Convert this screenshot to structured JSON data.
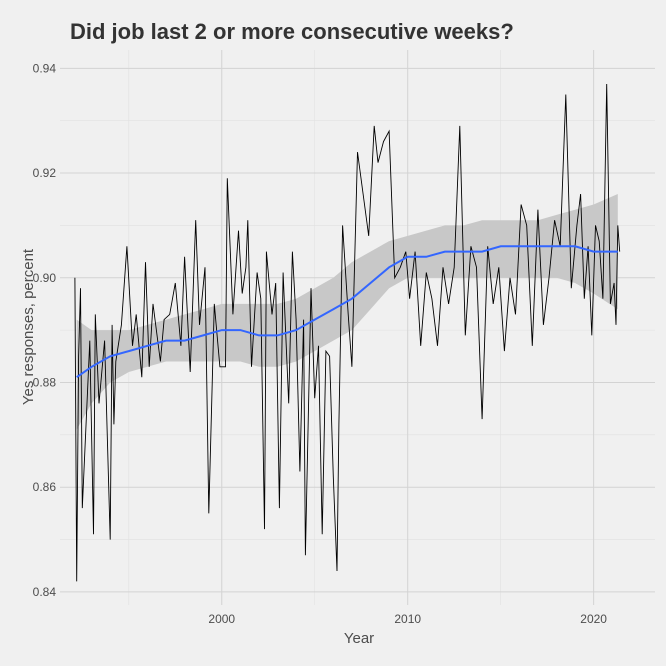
{
  "chart_data": {
    "type": "line",
    "title": "Did job last 2 or more consecutive weeks?",
    "xlabel": "Year",
    "ylabel": "Yes responses, percent",
    "xlim": [
      1991.3,
      2023.3
    ],
    "ylim": [
      0.8375,
      0.9435
    ],
    "x_ticks": [
      2000,
      2010,
      2020
    ],
    "y_ticks": [
      0.84,
      0.86,
      0.88,
      0.9,
      0.92,
      0.94
    ],
    "x_tick_labels": [
      "2000",
      "2010",
      "2020"
    ],
    "y_tick_labels": [
      "0.84",
      "0.86",
      "0.88",
      "0.90",
      "0.92",
      "0.94"
    ],
    "grid": true,
    "legend": "none",
    "series": [
      {
        "style": "raw",
        "color": "#000000",
        "x": [
          1992.1,
          1992.2,
          1992.3,
          1992.4,
          1992.5,
          1992.9,
          1993.1,
          1993.2,
          1993.4,
          1993.7,
          1994.0,
          1994.1,
          1994.2,
          1994.3,
          1994.6,
          1994.9,
          1995.2,
          1995.4,
          1995.7,
          1995.9,
          1996.1,
          1996.3,
          1996.7,
          1996.9,
          1997.2,
          1997.5,
          1997.8,
          1998.0,
          1998.3,
          1998.6,
          1998.8,
          1999.1,
          1999.3,
          1999.6,
          1999.9,
          2000.2,
          2000.3,
          2000.6,
          2000.9,
          2001.1,
          2001.3,
          2001.4,
          2001.6,
          2001.9,
          2002.1,
          2002.3,
          2002.4,
          2002.7,
          2002.9,
          2003.1,
          2003.3,
          2003.6,
          2003.8,
          2004.0,
          2004.2,
          2004.4,
          2004.5,
          2004.8,
          2005.0,
          2005.2,
          2005.4,
          2005.6,
          2005.8,
          2006.0,
          2006.2,
          2006.3,
          2006.5,
          2006.8,
          2007.0,
          2007.3,
          2007.6,
          2007.9,
          2008.2,
          2008.4,
          2008.7,
          2009.0,
          2009.3,
          2009.6,
          2009.9,
          2010.1,
          2010.4,
          2010.7,
          2011.0,
          2011.3,
          2011.6,
          2011.9,
          2012.2,
          2012.5,
          2012.8,
          2013.1,
          2013.4,
          2013.7,
          2014.0,
          2014.3,
          2014.6,
          2014.9,
          2015.2,
          2015.5,
          2015.8,
          2016.1,
          2016.4,
          2016.7,
          2017.0,
          2017.3,
          2017.6,
          2017.9,
          2018.2,
          2018.5,
          2018.8,
          2019.1,
          2019.3,
          2019.5,
          2019.7,
          2019.9,
          2020.1,
          2020.3,
          2020.5,
          2020.7,
          2020.9,
          2021.1,
          2021.2,
          2021.3,
          2021.4
        ],
        "values": [
          0.9,
          0.842,
          0.885,
          0.898,
          0.856,
          0.888,
          0.851,
          0.893,
          0.876,
          0.888,
          0.85,
          0.891,
          0.872,
          0.884,
          0.891,
          0.906,
          0.887,
          0.893,
          0.881,
          0.903,
          0.883,
          0.895,
          0.884,
          0.892,
          0.893,
          0.899,
          0.887,
          0.904,
          0.882,
          0.911,
          0.891,
          0.902,
          0.855,
          0.895,
          0.883,
          0.883,
          0.919,
          0.893,
          0.909,
          0.897,
          0.902,
          0.911,
          0.883,
          0.901,
          0.896,
          0.852,
          0.905,
          0.893,
          0.899,
          0.856,
          0.901,
          0.876,
          0.905,
          0.892,
          0.863,
          0.892,
          0.847,
          0.898,
          0.877,
          0.887,
          0.851,
          0.886,
          0.885,
          0.862,
          0.844,
          0.872,
          0.91,
          0.893,
          0.883,
          0.924,
          0.916,
          0.908,
          0.929,
          0.922,
          0.926,
          0.928,
          0.9,
          0.902,
          0.905,
          0.896,
          0.905,
          0.887,
          0.901,
          0.896,
          0.887,
          0.902,
          0.895,
          0.902,
          0.929,
          0.889,
          0.906,
          0.902,
          0.873,
          0.906,
          0.895,
          0.902,
          0.886,
          0.9,
          0.893,
          0.914,
          0.91,
          0.887,
          0.913,
          0.891,
          0.9,
          0.911,
          0.906,
          0.935,
          0.898,
          0.91,
          0.916,
          0.896,
          0.906,
          0.889,
          0.91,
          0.907,
          0.896,
          0.937,
          0.895,
          0.899,
          0.891,
          0.91,
          0.905
        ]
      },
      {
        "style": "smooth",
        "color": "#3366FF",
        "ribbon_color": "#C8C8C8",
        "x": [
          1992.2,
          1993.0,
          1994.0,
          1995.0,
          1996.0,
          1997.0,
          1998.0,
          1999.0,
          2000.0,
          2001.0,
          2002.0,
          2003.0,
          2004.0,
          2005.0,
          2006.0,
          2007.0,
          2008.0,
          2009.0,
          2010.0,
          2011.0,
          2012.0,
          2013.0,
          2014.0,
          2015.0,
          2016.0,
          2017.0,
          2018.0,
          2019.0,
          2020.0,
          2021.3
        ],
        "values": [
          0.881,
          0.883,
          0.885,
          0.886,
          0.887,
          0.888,
          0.888,
          0.889,
          0.89,
          0.89,
          0.889,
          0.889,
          0.89,
          0.892,
          0.894,
          0.896,
          0.899,
          0.902,
          0.904,
          0.904,
          0.905,
          0.905,
          0.905,
          0.906,
          0.906,
          0.906,
          0.906,
          0.906,
          0.905,
          0.905
        ],
        "ci_lower": [
          0.871,
          0.876,
          0.88,
          0.882,
          0.883,
          0.884,
          0.884,
          0.884,
          0.884,
          0.884,
          0.883,
          0.883,
          0.884,
          0.886,
          0.888,
          0.89,
          0.894,
          0.898,
          0.9,
          0.9,
          0.9,
          0.9,
          0.9,
          0.9,
          0.9,
          0.9,
          0.9,
          0.899,
          0.897,
          0.894
        ],
        "ci_upper": [
          0.892,
          0.89,
          0.89,
          0.89,
          0.891,
          0.892,
          0.893,
          0.894,
          0.895,
          0.895,
          0.895,
          0.895,
          0.896,
          0.898,
          0.9,
          0.903,
          0.905,
          0.907,
          0.908,
          0.909,
          0.91,
          0.91,
          0.911,
          0.911,
          0.911,
          0.911,
          0.912,
          0.913,
          0.914,
          0.916
        ]
      }
    ]
  }
}
